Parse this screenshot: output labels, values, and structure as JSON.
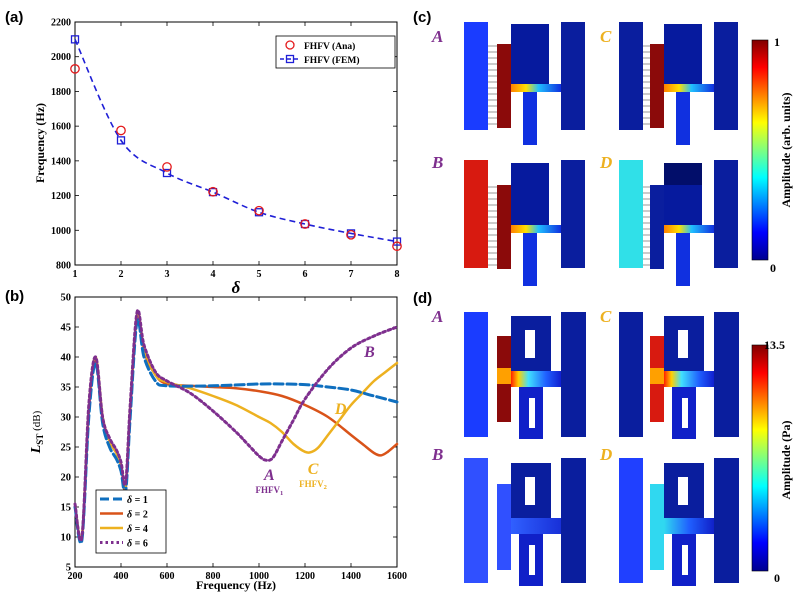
{
  "panel_labels": {
    "a": "(a)",
    "b": "(b)",
    "c": "(c)",
    "d": "(d)"
  },
  "chart_data": [
    {
      "id": "a",
      "type": "scatter",
      "xlabel": "δ",
      "ylabel": "Frequency (Hz)",
      "xlim": [
        1,
        8
      ],
      "ylim": [
        800,
        2200
      ],
      "xticks": [
        1,
        2,
        3,
        4,
        5,
        6,
        7,
        8
      ],
      "yticks": [
        800,
        1000,
        1200,
        1400,
        1600,
        1800,
        2000,
        2200
      ],
      "x": [
        1,
        2,
        3,
        4,
        5,
        6,
        7,
        8
      ],
      "series": [
        {
          "name": "FHFV (Ana)",
          "marker": "circle",
          "color": "#e41a1c",
          "values": [
            1930,
            1575,
            1365,
            1222,
            1113,
            1036,
            974,
            908
          ]
        },
        {
          "name": "FHFV (FEM)",
          "marker": "square",
          "line": "dashed",
          "color": "#1f1fd6",
          "values": [
            2100,
            1518,
            1330,
            1220,
            1104,
            1036,
            982,
            935
          ]
        }
      ],
      "legend_position": "top-right"
    },
    {
      "id": "b",
      "type": "line",
      "xlabel": "Frequency (Hz)",
      "ylabel": "L",
      "ylabel_sub": "ST",
      "ylabel_unit": " (dB)",
      "xlim": [
        200,
        1600
      ],
      "ylim": [
        5,
        50
      ],
      "xticks": [
        200,
        400,
        600,
        800,
        1000,
        1200,
        1400,
        1600
      ],
      "yticks": [
        5,
        10,
        15,
        20,
        25,
        30,
        35,
        40,
        45,
        50
      ],
      "series": [
        {
          "name": "δ = 1",
          "color": "#0f6fbf",
          "dash": "9,4",
          "width": 3,
          "x": [
            200,
            230,
            260,
            290,
            320,
            350,
            380,
            400,
            420,
            440,
            470,
            500,
            550,
            600,
            800,
            1000,
            1100,
            1200,
            1300,
            1400,
            1500,
            1600
          ],
          "y": [
            15,
            9.5,
            30,
            39,
            29,
            25,
            23,
            21,
            17.5,
            30,
            46,
            40,
            36,
            35.2,
            35.2,
            35.5,
            35.5,
            35.4,
            35,
            34.5,
            33.5,
            32.5
          ]
        },
        {
          "name": "δ = 2",
          "color": "#d95319",
          "dash": "",
          "width": 2.5,
          "x": [
            200,
            230,
            260,
            290,
            320,
            350,
            380,
            400,
            420,
            440,
            470,
            500,
            550,
            600,
            700,
            800,
            900,
            1000,
            1100,
            1200,
            1300,
            1400,
            1450,
            1500,
            1530,
            1560,
            1600
          ],
          "y": [
            15.5,
            10,
            31,
            39.5,
            30,
            26,
            24,
            22,
            18,
            31,
            47,
            41,
            37,
            35.5,
            35.2,
            35,
            34.8,
            34.3,
            33.5,
            32,
            30,
            27,
            25.5,
            24,
            23.6,
            24.2,
            25.5
          ]
        },
        {
          "name": "δ = 4",
          "color": "#edb120",
          "dash": "",
          "width": 2.5,
          "x": [
            200,
            230,
            260,
            290,
            320,
            350,
            380,
            400,
            420,
            440,
            470,
            500,
            550,
            600,
            700,
            800,
            900,
            1000,
            1050,
            1100,
            1150,
            1200,
            1230,
            1260,
            1300,
            1350,
            1400,
            1450,
            1500,
            1550,
            1600
          ],
          "y": [
            15.5,
            10,
            31.5,
            40,
            30,
            26,
            24,
            22,
            18.5,
            31.5,
            47,
            41.5,
            37,
            35.8,
            34.8,
            33.5,
            32,
            30,
            29,
            27.5,
            25.5,
            24.2,
            24.2,
            25,
            27,
            29.5,
            32,
            34,
            36,
            37.5,
            39
          ]
        },
        {
          "name": "δ = 6",
          "color": "#7e2f8e",
          "dash": "2.5,3",
          "width": 3,
          "x": [
            200,
            230,
            260,
            290,
            320,
            350,
            380,
            400,
            420,
            440,
            470,
            500,
            550,
            600,
            700,
            800,
            900,
            950,
            1000,
            1030,
            1060,
            1100,
            1150,
            1200,
            1300,
            1400,
            1500,
            1600
          ],
          "y": [
            15.5,
            10,
            32,
            40,
            30,
            26.5,
            24.5,
            22.5,
            19,
            32,
            47.5,
            42,
            37.5,
            36,
            34,
            31,
            27.5,
            25.5,
            23.5,
            22.8,
            23.2,
            26,
            29.5,
            33,
            38,
            41.5,
            43.5,
            45
          ]
        }
      ],
      "legend_position": "bottom-left",
      "annotations": [
        {
          "letter": "A",
          "sub_main": "FHFV",
          "sub_idx": "1",
          "color": "#7e2f8e",
          "x": 1045,
          "y": 19.5
        },
        {
          "letter": "C",
          "sub_main": "FHFV",
          "sub_idx": "2",
          "color": "#edb120",
          "x": 1235,
          "y": 20.5
        },
        {
          "letter": "D",
          "sub_main": "",
          "sub_idx": "",
          "color": "#edb120",
          "x": 1355,
          "y": 30.5
        },
        {
          "letter": "B",
          "sub_main": "",
          "sub_idx": "",
          "color": "#7e2f8e",
          "x": 1480,
          "y": 40
        }
      ]
    }
  ],
  "panel_c": {
    "letters": [
      "A",
      "C",
      "B",
      "D"
    ],
    "letter_colors": [
      "#7e2f8e",
      "#edb120",
      "#7e2f8e",
      "#edb120"
    ],
    "colorbar": {
      "label": "Amplitude (arb. units)",
      "max": "1",
      "min": "0"
    }
  },
  "panel_d": {
    "letters": [
      "A",
      "C",
      "B",
      "D"
    ],
    "letter_colors": [
      "#7e2f8e",
      "#edb120",
      "#7e2f8e",
      "#edb120"
    ],
    "colorbar": {
      "label": "Amplitude (Pa)",
      "max": "13.5",
      "min": "0"
    }
  }
}
